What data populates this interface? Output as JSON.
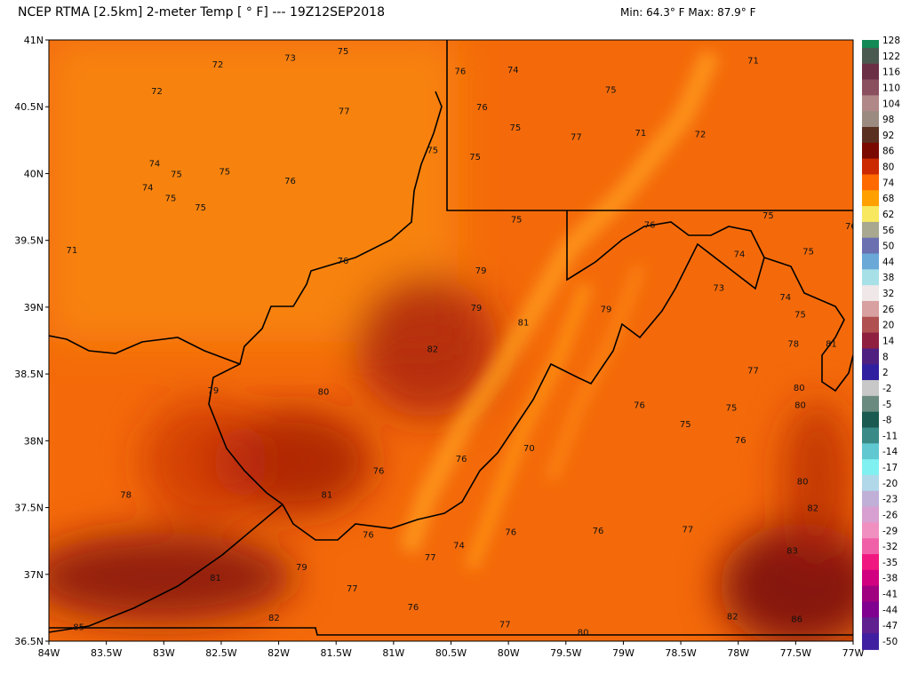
{
  "header": {
    "title": "NCEP RTMA [2.5km] 2-meter Temp [ ° F]  --- 19Z12SEP2018",
    "minmax": "Min: 64.3° F Max: 87.9° F"
  },
  "map": {
    "lon_range": [
      -84,
      -77
    ],
    "lat_range": [
      36.5,
      41
    ],
    "lon_ticks": [
      "84W",
      "83.5W",
      "83W",
      "82.5W",
      "82W",
      "81.5W",
      "81W",
      "80.5W",
      "80W",
      "79.5W",
      "79W",
      "78.5W",
      "78W",
      "77.5W",
      "77W"
    ],
    "lat_ticks": [
      "41N",
      "40.5N",
      "40N",
      "39.5N",
      "39N",
      "38.5N",
      "38N",
      "37.5N",
      "37N",
      "36.5N"
    ],
    "station_values": [
      {
        "lon": -82.53,
        "lat": 40.82,
        "t": "72"
      },
      {
        "lon": -81.9,
        "lat": 40.87,
        "t": "73"
      },
      {
        "lon": -81.44,
        "lat": 40.92,
        "t": "75"
      },
      {
        "lon": -83.06,
        "lat": 40.62,
        "t": "72"
      },
      {
        "lon": -81.43,
        "lat": 40.47,
        "t": "77"
      },
      {
        "lon": -83.08,
        "lat": 40.08,
        "t": "74"
      },
      {
        "lon": -82.89,
        "lat": 40.0,
        "t": "75"
      },
      {
        "lon": -82.47,
        "lat": 40.02,
        "t": "75"
      },
      {
        "lon": -83.14,
        "lat": 39.9,
        "t": "74"
      },
      {
        "lon": -82.94,
        "lat": 39.82,
        "t": "75"
      },
      {
        "lon": -82.68,
        "lat": 39.75,
        "t": "75"
      },
      {
        "lon": -81.9,
        "lat": 39.95,
        "t": "76"
      },
      {
        "lon": -80.66,
        "lat": 40.18,
        "t": "75"
      },
      {
        "lon": -83.8,
        "lat": 39.43,
        "t": "71"
      },
      {
        "lon": -80.42,
        "lat": 40.77,
        "t": "76"
      },
      {
        "lon": -79.96,
        "lat": 40.78,
        "t": "74"
      },
      {
        "lon": -79.11,
        "lat": 40.63,
        "t": "75"
      },
      {
        "lon": -80.23,
        "lat": 40.5,
        "t": "76"
      },
      {
        "lon": -79.94,
        "lat": 40.35,
        "t": "75"
      },
      {
        "lon": -79.41,
        "lat": 40.28,
        "t": "77"
      },
      {
        "lon": -80.29,
        "lat": 40.13,
        "t": "75"
      },
      {
        "lon": -78.85,
        "lat": 40.31,
        "t": "71"
      },
      {
        "lon": -78.33,
        "lat": 40.3,
        "t": "72"
      },
      {
        "lon": -77.87,
        "lat": 40.85,
        "t": "71"
      },
      {
        "lon": -79.93,
        "lat": 39.66,
        "t": "75"
      },
      {
        "lon": -78.77,
        "lat": 39.62,
        "t": "76"
      },
      {
        "lon": -77.74,
        "lat": 39.69,
        "t": "75"
      },
      {
        "lon": -77.02,
        "lat": 39.61,
        "t": "76"
      },
      {
        "lon": -77.39,
        "lat": 39.42,
        "t": "75"
      },
      {
        "lon": -77.99,
        "lat": 39.4,
        "t": "74"
      },
      {
        "lon": -78.17,
        "lat": 39.15,
        "t": "73"
      },
      {
        "lon": -77.59,
        "lat": 39.08,
        "t": "74"
      },
      {
        "lon": -81.44,
        "lat": 39.35,
        "t": "76"
      },
      {
        "lon": -80.24,
        "lat": 39.28,
        "t": "79"
      },
      {
        "lon": -80.28,
        "lat": 39.0,
        "t": "79"
      },
      {
        "lon": -79.87,
        "lat": 38.89,
        "t": "81"
      },
      {
        "lon": -79.15,
        "lat": 38.99,
        "t": "79"
      },
      {
        "lon": -77.46,
        "lat": 38.95,
        "t": "75"
      },
      {
        "lon": -77.52,
        "lat": 38.73,
        "t": "78"
      },
      {
        "lon": -77.19,
        "lat": 38.73,
        "t": "81"
      },
      {
        "lon": -80.66,
        "lat": 38.69,
        "t": "82"
      },
      {
        "lon": -82.57,
        "lat": 38.38,
        "t": "79"
      },
      {
        "lon": -81.61,
        "lat": 38.37,
        "t": "80"
      },
      {
        "lon": -77.87,
        "lat": 38.53,
        "t": "77"
      },
      {
        "lon": -77.47,
        "lat": 38.4,
        "t": "80"
      },
      {
        "lon": -77.46,
        "lat": 38.27,
        "t": "80"
      },
      {
        "lon": -78.86,
        "lat": 38.27,
        "t": "76"
      },
      {
        "lon": -78.46,
        "lat": 38.13,
        "t": "75"
      },
      {
        "lon": -78.06,
        "lat": 38.25,
        "t": "75"
      },
      {
        "lon": -77.98,
        "lat": 38.01,
        "t": "76"
      },
      {
        "lon": -79.82,
        "lat": 37.95,
        "t": "70"
      },
      {
        "lon": -80.41,
        "lat": 37.87,
        "t": "76"
      },
      {
        "lon": -81.13,
        "lat": 37.78,
        "t": "76"
      },
      {
        "lon": -81.58,
        "lat": 37.6,
        "t": "81"
      },
      {
        "lon": -83.33,
        "lat": 37.6,
        "t": "78"
      },
      {
        "lon": -77.44,
        "lat": 37.7,
        "t": "80"
      },
      {
        "lon": -77.35,
        "lat": 37.5,
        "t": "82"
      },
      {
        "lon": -81.22,
        "lat": 37.3,
        "t": "76"
      },
      {
        "lon": -80.43,
        "lat": 37.22,
        "t": "74"
      },
      {
        "lon": -79.98,
        "lat": 37.32,
        "t": "76"
      },
      {
        "lon": -79.22,
        "lat": 37.33,
        "t": "76"
      },
      {
        "lon": -78.44,
        "lat": 37.34,
        "t": "77"
      },
      {
        "lon": -77.53,
        "lat": 37.18,
        "t": "83"
      },
      {
        "lon": -80.68,
        "lat": 37.13,
        "t": "77"
      },
      {
        "lon": -81.8,
        "lat": 37.06,
        "t": "79"
      },
      {
        "lon": -82.55,
        "lat": 36.98,
        "t": "81"
      },
      {
        "lon": -81.36,
        "lat": 36.9,
        "t": "77"
      },
      {
        "lon": -80.83,
        "lat": 36.76,
        "t": "76"
      },
      {
        "lon": -82.04,
        "lat": 36.68,
        "t": "82"
      },
      {
        "lon": -78.05,
        "lat": 36.69,
        "t": "82"
      },
      {
        "lon": -77.49,
        "lat": 36.67,
        "t": "86"
      },
      {
        "lon": -80.03,
        "lat": 36.63,
        "t": "77"
      },
      {
        "lon": -79.35,
        "lat": 36.57,
        "t": "80"
      },
      {
        "lon": -83.74,
        "lat": 36.61,
        "t": "85"
      }
    ]
  },
  "colorbar": {
    "labels": [
      "128",
      "122",
      "116",
      "110",
      "104",
      "98",
      "92",
      "86",
      "80",
      "74",
      "68",
      "62",
      "56",
      "50",
      "44",
      "38",
      "32",
      "26",
      "20",
      "14",
      "8",
      "2",
      "-2",
      "-5",
      "-8",
      "-11",
      "-14",
      "-17",
      "-20",
      "-23",
      "-26",
      "-29",
      "-32",
      "-35",
      "-38",
      "-41",
      "-44",
      "-47",
      "-50"
    ],
    "colors": [
      "#138a55",
      "#4a5a50",
      "#6b2f45",
      "#8a5060",
      "#b08888",
      "#9a8a80",
      "#5a3020",
      "#7a0a00",
      "#cc2a00",
      "#ff6a00",
      "#ffa000",
      "#f8e860",
      "#a8a890",
      "#6a70b0",
      "#6aa8d8",
      "#a8e0e8",
      "#f0e8e8",
      "#d8a0a0",
      "#b05050",
      "#902040",
      "#502080",
      "#3020a0",
      "#c8c8c8",
      "#6a8a80",
      "#1a5a50",
      "#3a8a88",
      "#60c8d0",
      "#80f0f0",
      "#b0d8e8",
      "#c0b0d8",
      "#d8a0d0",
      "#f090c0",
      "#f060a8",
      "#f01880",
      "#d00080",
      "#a00080",
      "#800090",
      "#602090",
      "#4020a0"
    ]
  }
}
